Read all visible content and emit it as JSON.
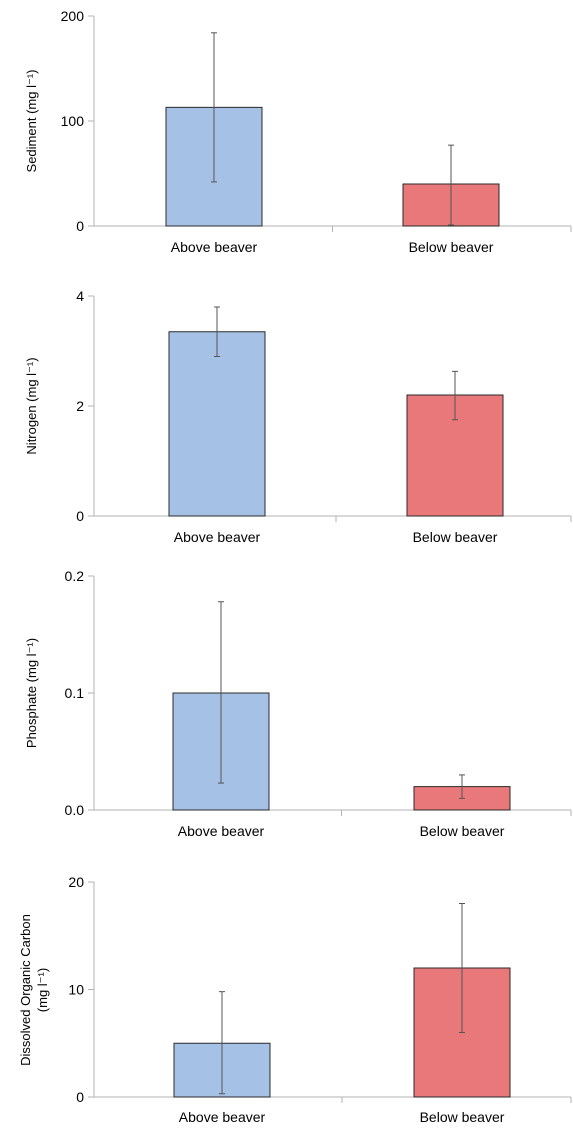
{
  "colors": {
    "above": "#a6c1e6",
    "below": "#e9787a",
    "bar_stroke": "#2a2a2a",
    "axis": "#b3b3b3",
    "error_bar": "#555555"
  },
  "chart_data": [
    {
      "type": "bar",
      "categories": [
        "Above beaver",
        "Below beaver"
      ],
      "values": [
        113,
        40
      ],
      "error_low": [
        42,
        1
      ],
      "error_high": [
        184,
        77
      ],
      "ylabel": "Sediment (mg l⁻¹)",
      "ylabel_lines": [
        "Sediment (mg l⁻¹)"
      ],
      "ylim": [
        0,
        200
      ],
      "yticks": [
        0,
        100,
        200
      ],
      "ytick_labels": [
        "0",
        "100",
        "200"
      ],
      "grid": false
    },
    {
      "type": "bar",
      "categories": [
        "Above beaver",
        "Below beaver"
      ],
      "values": [
        3.35,
        2.2
      ],
      "error_low": [
        2.9,
        1.75
      ],
      "error_high": [
        3.8,
        2.63
      ],
      "ylabel": "Nitrogen (mg l⁻¹)",
      "ylabel_lines": [
        "Nitrogen  (mg l⁻¹)"
      ],
      "ylim": [
        0,
        4
      ],
      "yticks": [
        0,
        2,
        4
      ],
      "ytick_labels": [
        "0",
        "2",
        "4"
      ],
      "grid": false
    },
    {
      "type": "bar",
      "categories": [
        "Above beaver",
        "Below beaver"
      ],
      "values": [
        0.1,
        0.02
      ],
      "error_low": [
        0.023,
        0.01
      ],
      "error_high": [
        0.178,
        0.03
      ],
      "ylabel": "Phosphate (mg l⁻¹)",
      "ylabel_lines": [
        "Phosphate  (mg l⁻¹)"
      ],
      "ylim": [
        0,
        0.2
      ],
      "yticks": [
        0,
        0.1,
        0.2
      ],
      "ytick_labels": [
        "0.0",
        "0.1",
        "0.2"
      ],
      "grid": false
    },
    {
      "type": "bar",
      "categories": [
        "Above beaver",
        "Below beaver"
      ],
      "values": [
        5,
        12
      ],
      "error_low": [
        0.3,
        6
      ],
      "error_high": [
        9.8,
        18
      ],
      "ylabel": "Dissolved Organic Carbon (mg l⁻¹)",
      "ylabel_lines": [
        "Dissolved Organic Carbon",
        "(mg l⁻¹)"
      ],
      "ylim": [
        0,
        20
      ],
      "yticks": [
        0,
        10,
        20
      ],
      "ytick_labels": [
        "0",
        "10",
        "20"
      ],
      "grid": false
    }
  ]
}
